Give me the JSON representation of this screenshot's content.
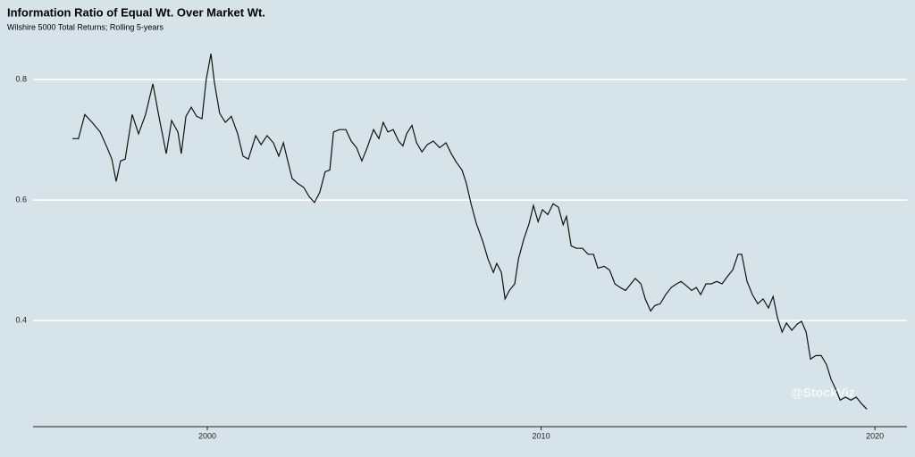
{
  "chart_data": {
    "type": "line",
    "title": "Information Ratio of Equal Wt. Over Market Wt.",
    "subtitle": "Wilshire 5000 Total Returns; Rolling 5-years",
    "annotation": "@StockViz",
    "xlim": [
      1994.78,
      2020.96
    ],
    "ylim": [
      0.224,
      0.858
    ],
    "xticks": [
      2000,
      2010,
      2020
    ],
    "yticks": [
      0.4,
      0.6,
      0.8
    ],
    "grid": true,
    "series": [
      {
        "name": "Information Ratio",
        "color": "#111111",
        "x": [
          1995.96,
          1996.14,
          1996.33,
          1996.55,
          1996.79,
          1997.0,
          1997.14,
          1997.27,
          1997.4,
          1997.54,
          1997.75,
          1997.94,
          1998.15,
          1998.37,
          1998.55,
          1998.77,
          1998.93,
          1999.12,
          1999.22,
          1999.36,
          1999.52,
          1999.68,
          1999.84,
          1999.97,
          2000.11,
          2000.21,
          2000.37,
          2000.54,
          2000.72,
          2000.91,
          2001.07,
          2001.23,
          2001.45,
          2001.61,
          2001.79,
          2001.98,
          2002.14,
          2002.28,
          2002.41,
          2002.54,
          2002.7,
          2002.89,
          2003.05,
          2003.21,
          2003.37,
          2003.53,
          2003.67,
          2003.78,
          2003.96,
          2004.15,
          2004.31,
          2004.47,
          2004.63,
          2004.79,
          2004.98,
          2005.14,
          2005.27,
          2005.41,
          2005.57,
          2005.73,
          2005.86,
          2005.97,
          2006.13,
          2006.27,
          2006.43,
          2006.59,
          2006.77,
          2006.96,
          2007.15,
          2007.31,
          2007.47,
          2007.63,
          2007.76,
          2007.9,
          2008.06,
          2008.25,
          2008.41,
          2008.57,
          2008.67,
          2008.81,
          2008.92,
          2009.05,
          2009.21,
          2009.32,
          2009.48,
          2009.64,
          2009.77,
          2009.91,
          2010.04,
          2010.2,
          2010.36,
          2010.52,
          2010.66,
          2010.76,
          2010.9,
          2011.06,
          2011.24,
          2011.41,
          2011.57,
          2011.7,
          2011.89,
          2012.05,
          2012.21,
          2012.37,
          2012.53,
          2012.69,
          2012.82,
          2012.99,
          2013.12,
          2013.28,
          2013.41,
          2013.57,
          2013.73,
          2013.9,
          2014.06,
          2014.19,
          2014.35,
          2014.51,
          2014.65,
          2014.78,
          2014.94,
          2015.1,
          2015.26,
          2015.42,
          2015.58,
          2015.74,
          2015.9,
          2016.01,
          2016.17,
          2016.33,
          2016.49,
          2016.65,
          2016.81,
          2016.95,
          2017.08,
          2017.22,
          2017.35,
          2017.51,
          2017.67,
          2017.8,
          2017.94,
          2018.07,
          2018.23,
          2018.39,
          2018.55,
          2018.69,
          2018.82,
          2018.96,
          2019.12,
          2019.28,
          2019.44,
          2019.6,
          2019.76
        ],
        "values": [
          0.702,
          0.702,
          0.742,
          0.729,
          0.713,
          0.687,
          0.668,
          0.631,
          0.665,
          0.668,
          0.742,
          0.71,
          0.742,
          0.793,
          0.739,
          0.677,
          0.732,
          0.713,
          0.677,
          0.739,
          0.754,
          0.739,
          0.735,
          0.801,
          0.843,
          0.796,
          0.744,
          0.729,
          0.739,
          0.71,
          0.673,
          0.668,
          0.707,
          0.692,
          0.707,
          0.695,
          0.673,
          0.695,
          0.665,
          0.636,
          0.628,
          0.621,
          0.606,
          0.596,
          0.613,
          0.647,
          0.65,
          0.713,
          0.717,
          0.717,
          0.698,
          0.687,
          0.665,
          0.687,
          0.717,
          0.702,
          0.729,
          0.713,
          0.717,
          0.698,
          0.69,
          0.71,
          0.724,
          0.695,
          0.68,
          0.692,
          0.698,
          0.687,
          0.695,
          0.677,
          0.662,
          0.65,
          0.628,
          0.594,
          0.561,
          0.532,
          0.502,
          0.48,
          0.495,
          0.48,
          0.436,
          0.45,
          0.461,
          0.502,
          0.535,
          0.561,
          0.591,
          0.564,
          0.584,
          0.576,
          0.594,
          0.588,
          0.559,
          0.573,
          0.524,
          0.52,
          0.52,
          0.51,
          0.51,
          0.487,
          0.49,
          0.484,
          0.461,
          0.455,
          0.45,
          0.461,
          0.47,
          0.461,
          0.436,
          0.416,
          0.425,
          0.428,
          0.443,
          0.455,
          0.461,
          0.465,
          0.458,
          0.45,
          0.455,
          0.443,
          0.461,
          0.461,
          0.465,
          0.461,
          0.473,
          0.484,
          0.51,
          0.51,
          0.465,
          0.443,
          0.428,
          0.436,
          0.421,
          0.44,
          0.405,
          0.381,
          0.396,
          0.384,
          0.394,
          0.399,
          0.381,
          0.336,
          0.342,
          0.342,
          0.327,
          0.302,
          0.287,
          0.268,
          0.273,
          0.268,
          0.273,
          0.262,
          0.253
        ]
      }
    ]
  }
}
